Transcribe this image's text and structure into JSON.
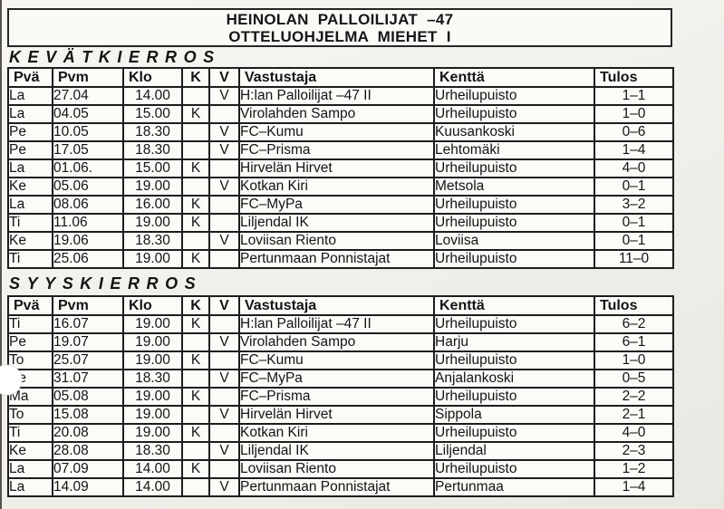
{
  "title": {
    "line1": "HEINOLAN PALLOILIJAT –47",
    "line2": "OTTELUOHJELMA MIEHET I"
  },
  "columns": [
    "Pvä",
    "Pvm",
    "Klo",
    "K",
    "V",
    "Vastustaja",
    "Kenttä",
    "Tulos"
  ],
  "sections": [
    {
      "name": "KEVÄTKIERROS",
      "rows": [
        [
          "La",
          "27.04",
          "14.00",
          "",
          "V",
          "H:lan Palloilijat –47 II",
          "Urheilupuisto",
          "1–1"
        ],
        [
          "La",
          "04.05",
          "15.00",
          "K",
          "",
          "Virolahden Sampo",
          "Urheilupuisto",
          "1–0"
        ],
        [
          "Pe",
          "10.05",
          "18.30",
          "",
          "V",
          "FC–Kumu",
          "Kuusankoski",
          "0–6"
        ],
        [
          "Pe",
          "17.05",
          "18.30",
          "",
          "V",
          "FC–Prisma",
          "Lehtomäki",
          "1–4"
        ],
        [
          "La",
          "01.06.",
          "15.00",
          "K",
          "",
          "Hirvelän Hirvet",
          "Urheilupuisto",
          "4–0"
        ],
        [
          "Ke",
          "05.06",
          "19.00",
          "",
          "V",
          "Kotkan Kiri",
          "Metsola",
          "0–1"
        ],
        [
          "La",
          "08.06",
          "16.00",
          "K",
          "",
          "FC–MyPa",
          "Urheilupuisto",
          "3–2"
        ],
        [
          "Ti",
          "11.06",
          "19.00",
          "K",
          "",
          "Liljendal IK",
          "Urheilupuisto",
          "0–1"
        ],
        [
          "Ke",
          "19.06",
          "18.30",
          "",
          "V",
          "Loviisan Riento",
          "Loviisa",
          "0–1"
        ],
        [
          "Ti",
          "25.06",
          "19.00",
          "K",
          "",
          "Pertunmaan Ponnistajat",
          "Urheilupuisto",
          "11–0"
        ]
      ]
    },
    {
      "name": "SYYSKIERROS",
      "rows": [
        [
          "Ti",
          "16.07",
          "19.00",
          "K",
          "",
          "H:lan Palloilijat –47 II",
          "Urheilupuisto",
          "6–2"
        ],
        [
          "Pe",
          "19.07",
          "19.00",
          "",
          "V",
          "Virolahden Sampo",
          "Harju",
          "6–1"
        ],
        [
          "To",
          "25.07",
          "19.00",
          "K",
          "",
          "FC–Kumu",
          "Urheilupuisto",
          "1–0"
        ],
        [
          "Ke",
          "31.07",
          "18.30",
          "",
          "V",
          "FC–MyPa",
          "Anjalankoski",
          "0–5"
        ],
        [
          "Ma",
          "05.08",
          "19.00",
          "K",
          "",
          "FC–Prisma",
          "Urheilupuisto",
          "2–2"
        ],
        [
          "To",
          "15.08",
          "19.00",
          "",
          "V",
          "Hirvelän Hirvet",
          "Sippola",
          "2–1"
        ],
        [
          "Ti",
          "20.08",
          "19.00",
          "K",
          "",
          "Kotkan Kiri",
          "Urheilupuisto",
          "4–0"
        ],
        [
          "Ke",
          "28.08",
          "18.30",
          "",
          "V",
          "Liljendal IK",
          "Liljendal",
          "2–3"
        ],
        [
          "La",
          "07.09",
          "14.00",
          "K",
          "",
          "Loviisan Riento",
          "Urheilupuisto",
          "1–2"
        ],
        [
          "La",
          "14.09",
          "14.00",
          "",
          "V",
          "Pertunmaan Ponnistajat",
          "Pertunmaa",
          "1–4"
        ]
      ]
    }
  ]
}
